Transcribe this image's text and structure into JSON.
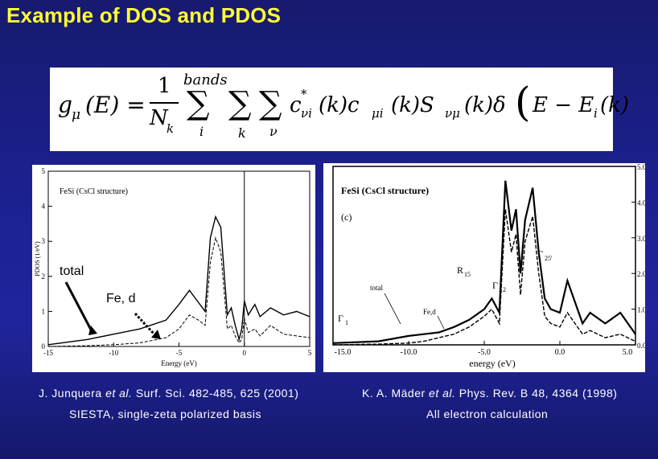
{
  "slide": {
    "title": "Example of DOS and PDOS"
  },
  "formula": {
    "lhs": "g",
    "lhs_sub": "μ",
    "lhs_arg": "(E) =",
    "frac_num": "1",
    "frac_den": "N",
    "frac_den_sub": "k",
    "sum1_top": "bands",
    "sum1_bottom": "i",
    "sum2_bottom": "k",
    "sum3_bottom": "ν",
    "term_c_star": "c",
    "term_c_star_sup": "*",
    "term_c_star_sub": "νi",
    "term_rest": "(k)c",
    "term_c_sub": "μi",
    "term_rest2": "(k)S",
    "term_s_sub": "νμ",
    "term_rest3": "(k)δ",
    "bracket_content": "E − E",
    "bracket_sub": "i",
    "bracket_tail": "(k)"
  },
  "left_plot": {
    "inner_label": "FeSi (CsCl structure)",
    "ylabel": "PDOS (1/eV)",
    "xlabel": "Energy (eV)",
    "xticks": [
      "-15",
      "-10",
      "-5",
      "0",
      "5"
    ],
    "yticks": [
      "0",
      "1",
      "2",
      "3",
      "4",
      "5"
    ],
    "annotation_total": "total",
    "annotation_fed": "Fe, d"
  },
  "right_plot": {
    "inner_label": "FeSi (CsCl structure)",
    "panel_label": "(c)",
    "xlabel": "energy (eV)",
    "xticks": [
      "-15.0",
      "-10.0",
      "-5.0",
      "0.0",
      "5.0"
    ],
    "yticks": [
      "0.0",
      "1.0",
      "2.0",
      "3.0",
      "4.0",
      "5.0"
    ],
    "label_total": "total",
    "label_fed": "Fe,d",
    "label_r15": "R",
    "label_r15_sub": "15",
    "label_g25": "Γ",
    "label_g25_sub": "25'",
    "label_g12": "Γ",
    "label_g12_sub": "12",
    "label_g1": "Γ",
    "label_g1_sub": "1"
  },
  "captions": {
    "left_ref_author": "J. Junquera",
    "left_ref_etal": "et al.",
    "left_ref_rest": "Surf. Sci. 482-485, 625 (2001)",
    "left_method": "SIESTA, single-zeta polarized basis",
    "right_ref_author": "K. A. Mäder",
    "right_ref_etal": "et al.",
    "right_ref_rest": "Phys. Rev. B 48, 4364 (1998)",
    "right_method": "All electron calculation"
  },
  "colors": {
    "title": "#ffff33",
    "background": "#1c2192",
    "caption": "#ffffff"
  },
  "chart_data": [
    {
      "type": "line",
      "title": "FeSi (CsCl structure)",
      "xlabel": "Energy (eV)",
      "ylabel": "PDOS (1/eV)",
      "xlim": [
        -15,
        5
      ],
      "ylim": [
        0,
        5
      ],
      "series": [
        {
          "name": "total",
          "x": [
            -15,
            -12,
            -10,
            -8,
            -6,
            -5,
            -4.2,
            -3.5,
            -3,
            -2.6,
            -2.2,
            -1.8,
            -1.3,
            -1,
            -0.7,
            -0.4,
            -0.2,
            0,
            0.3,
            0.8,
            1.2,
            2,
            3,
            4,
            5
          ],
          "y": [
            0.05,
            0.2,
            0.35,
            0.5,
            0.75,
            1.2,
            1.6,
            1.25,
            1.0,
            3.1,
            3.7,
            3.4,
            0.9,
            1.1,
            0.6,
            0.2,
            0.5,
            1.3,
            0.9,
            1.2,
            0.85,
            1.1,
            0.9,
            1.0,
            0.85
          ]
        },
        {
          "name": "Fe, d",
          "x": [
            -15,
            -12,
            -10,
            -8,
            -6,
            -5,
            -4.2,
            -3.5,
            -3,
            -2.6,
            -2.2,
            -1.8,
            -1.3,
            -1,
            -0.7,
            -0.4,
            -0.2,
            0,
            0.3,
            0.8,
            1.2,
            2,
            3,
            4,
            5
          ],
          "y": [
            0.0,
            0.02,
            0.05,
            0.1,
            0.25,
            0.5,
            0.9,
            0.75,
            0.6,
            2.4,
            3.1,
            2.7,
            0.5,
            0.6,
            0.3,
            0.1,
            0.2,
            0.8,
            0.4,
            0.5,
            0.3,
            0.6,
            0.35,
            0.3,
            0.25
          ]
        }
      ]
    },
    {
      "type": "line",
      "title": "FeSi (CsCl structure)",
      "xlabel": "energy (eV)",
      "xlim": [
        -15,
        5
      ],
      "ylim": [
        0,
        5
      ],
      "series": [
        {
          "name": "total",
          "x": [
            -15,
            -12,
            -10,
            -9,
            -8,
            -7,
            -6,
            -5,
            -4.5,
            -4,
            -3.6,
            -3.2,
            -2.9,
            -2.6,
            -2.3,
            -1.8,
            -1.4,
            -1,
            -0.6,
            0,
            0.5,
            1,
            1.5,
            2,
            3,
            4,
            5
          ],
          "y": [
            0.05,
            0.1,
            0.25,
            0.3,
            0.35,
            0.5,
            0.7,
            1.0,
            1.3,
            0.9,
            4.6,
            3.2,
            3.8,
            2.0,
            3.5,
            4.4,
            2.6,
            1.3,
            1.0,
            0.9,
            1.8,
            1.2,
            0.6,
            0.9,
            0.6,
            0.9,
            0.3
          ]
        },
        {
          "name": "Fe,d",
          "x": [
            -15,
            -12,
            -10,
            -9,
            -8,
            -7,
            -6,
            -5,
            -4.5,
            -4,
            -3.6,
            -3.2,
            -2.9,
            -2.6,
            -2.3,
            -1.8,
            -1.4,
            -1,
            -0.6,
            0,
            0.5,
            1,
            1.5,
            2,
            3,
            4,
            5
          ],
          "y": [
            0,
            0.02,
            0.05,
            0.1,
            0.2,
            0.3,
            0.5,
            0.8,
            1.0,
            0.6,
            3.8,
            2.6,
            3.1,
            1.4,
            2.9,
            3.6,
            2.0,
            0.8,
            0.6,
            0.5,
            0.9,
            0.6,
            0.3,
            0.4,
            0.2,
            0.3,
            0.1
          ]
        }
      ]
    }
  ]
}
